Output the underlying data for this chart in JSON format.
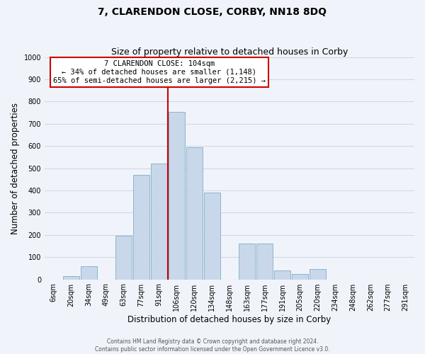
{
  "title": "7, CLARENDON CLOSE, CORBY, NN18 8DQ",
  "subtitle": "Size of property relative to detached houses in Corby",
  "xlabel": "Distribution of detached houses by size in Corby",
  "ylabel": "Number of detached properties",
  "bin_labels": [
    "6sqm",
    "20sqm",
    "34sqm",
    "49sqm",
    "63sqm",
    "77sqm",
    "91sqm",
    "106sqm",
    "120sqm",
    "134sqm",
    "148sqm",
    "163sqm",
    "177sqm",
    "191sqm",
    "205sqm",
    "220sqm",
    "234sqm",
    "248sqm",
    "262sqm",
    "277sqm",
    "291sqm"
  ],
  "bar_heights": [
    0,
    15,
    60,
    0,
    195,
    470,
    520,
    755,
    595,
    390,
    0,
    160,
    160,
    40,
    25,
    45,
    0,
    0,
    0,
    0,
    0
  ],
  "bar_color": "#c8d8ea",
  "bar_edge_color": "#8ab4cc",
  "vline_index": 7,
  "property_label_line1": "7 CLARENDON CLOSE: 104sqm",
  "property_label_line2": "← 34% of detached houses are smaller (1,148)",
  "property_label_line3": "65% of semi-detached houses are larger (2,215) →",
  "annotation_box_color": "#ffffff",
  "annotation_box_edge": "#cc0000",
  "vline_color": "#cc0000",
  "ylim": [
    0,
    1000
  ],
  "yticks": [
    0,
    100,
    200,
    300,
    400,
    500,
    600,
    700,
    800,
    900,
    1000
  ],
  "grid_color": "#d0d8e8",
  "footer_line1": "Contains HM Land Registry data © Crown copyright and database right 2024.",
  "footer_line2": "Contains public sector information licensed under the Open Government Licence v3.0.",
  "bg_color": "#f0f4fa",
  "title_fontsize": 10,
  "subtitle_fontsize": 9,
  "axis_label_fontsize": 8.5,
  "tick_fontsize": 7,
  "annotation_fontsize": 7.5,
  "footer_fontsize": 5.5
}
